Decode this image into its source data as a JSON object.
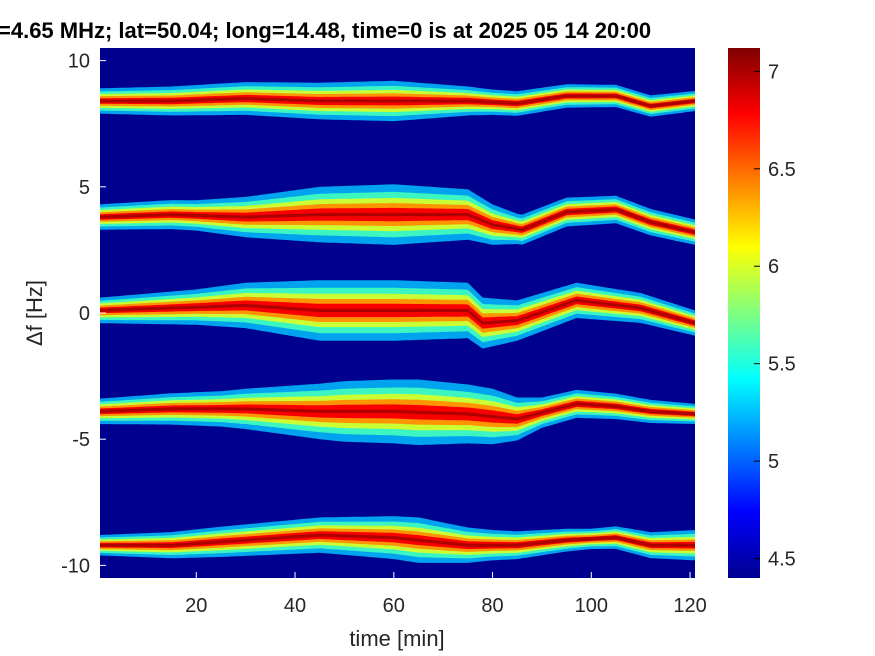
{
  "chart_data": {
    "type": "heatmap",
    "title": "=4.65 MHz;  lat=50.04; long=14.48, time=0 is at 2025 05 14 20:00",
    "xlabel": "time [min]",
    "ylabel": "Δf [Hz]",
    "xlim": [
      0.5,
      121
    ],
    "ylim": [
      -10.5,
      10.5
    ],
    "xticks": [
      20,
      40,
      60,
      80,
      100,
      120
    ],
    "yticks": [
      10,
      5,
      0,
      -5,
      -10
    ],
    "colorbar": {
      "ticks": [
        7,
        6.5,
        6,
        5.5,
        5,
        4.5
      ],
      "range": [
        4.4,
        7.12
      ],
      "colormap": "jet"
    },
    "background_value": 4.5,
    "peak_value": 7.0,
    "grid": false,
    "legend": "none",
    "bands": [
      {
        "name": "band-1",
        "points": [
          [
            0,
            8.4
          ],
          [
            15,
            8.4
          ],
          [
            30,
            8.5
          ],
          [
            45,
            8.4
          ],
          [
            60,
            8.4
          ],
          [
            75,
            8.4
          ],
          [
            85,
            8.3
          ],
          [
            95,
            8.6
          ],
          [
            105,
            8.6
          ],
          [
            112,
            8.2
          ],
          [
            121,
            8.4
          ]
        ],
        "spread": [
          [
            0,
            0.5
          ],
          [
            40,
            0.7
          ],
          [
            60,
            0.8
          ],
          [
            80,
            0.5
          ],
          [
            121,
            0.4
          ]
        ]
      },
      {
        "name": "band-2",
        "points": [
          [
            0,
            3.8
          ],
          [
            15,
            3.9
          ],
          [
            30,
            3.8
          ],
          [
            45,
            3.9
          ],
          [
            60,
            3.9
          ],
          [
            75,
            3.9
          ],
          [
            80,
            3.5
          ],
          [
            86,
            3.3
          ],
          [
            95,
            4.0
          ],
          [
            105,
            4.1
          ],
          [
            112,
            3.6
          ],
          [
            121,
            3.2
          ]
        ],
        "spread": [
          [
            0,
            0.5
          ],
          [
            20,
            0.6
          ],
          [
            45,
            1.1
          ],
          [
            60,
            1.2
          ],
          [
            75,
            1.0
          ],
          [
            85,
            0.6
          ],
          [
            121,
            0.5
          ]
        ]
      },
      {
        "name": "band-3",
        "points": [
          [
            0,
            0.1
          ],
          [
            15,
            0.2
          ],
          [
            30,
            0.3
          ],
          [
            45,
            0.1
          ],
          [
            60,
            0.1
          ],
          [
            75,
            0.1
          ],
          [
            78,
            -0.4
          ],
          [
            85,
            -0.3
          ],
          [
            97,
            0.5
          ],
          [
            110,
            0.2
          ],
          [
            121,
            -0.4
          ]
        ],
        "spread": [
          [
            0,
            0.5
          ],
          [
            20,
            0.7
          ],
          [
            45,
            1.2
          ],
          [
            60,
            1.2
          ],
          [
            75,
            1.1
          ],
          [
            85,
            0.8
          ],
          [
            121,
            0.5
          ]
        ]
      },
      {
        "name": "band-4",
        "points": [
          [
            0,
            -3.9
          ],
          [
            15,
            -3.8
          ],
          [
            30,
            -3.8
          ],
          [
            45,
            -3.9
          ],
          [
            60,
            -3.9
          ],
          [
            75,
            -4.0
          ],
          [
            85,
            -4.2
          ],
          [
            97,
            -3.6
          ],
          [
            105,
            -3.7
          ],
          [
            112,
            -3.9
          ],
          [
            121,
            -4.0
          ]
        ],
        "spread": [
          [
            0,
            0.5
          ],
          [
            25,
            0.7
          ],
          [
            50,
            1.2
          ],
          [
            65,
            1.3
          ],
          [
            80,
            1.1
          ],
          [
            90,
            0.6
          ],
          [
            121,
            0.4
          ]
        ]
      },
      {
        "name": "band-5",
        "points": [
          [
            0,
            -9.2
          ],
          [
            15,
            -9.2
          ],
          [
            30,
            -9.0
          ],
          [
            45,
            -8.8
          ],
          [
            60,
            -8.9
          ],
          [
            75,
            -9.2
          ],
          [
            85,
            -9.2
          ],
          [
            95,
            -9.0
          ],
          [
            105,
            -8.9
          ],
          [
            112,
            -9.2
          ],
          [
            121,
            -9.2
          ]
        ],
        "spread": [
          [
            0,
            0.4
          ],
          [
            25,
            0.6
          ],
          [
            45,
            0.7
          ],
          [
            65,
            0.9
          ],
          [
            80,
            0.6
          ],
          [
            100,
            0.4
          ],
          [
            121,
            0.6
          ]
        ]
      }
    ]
  }
}
